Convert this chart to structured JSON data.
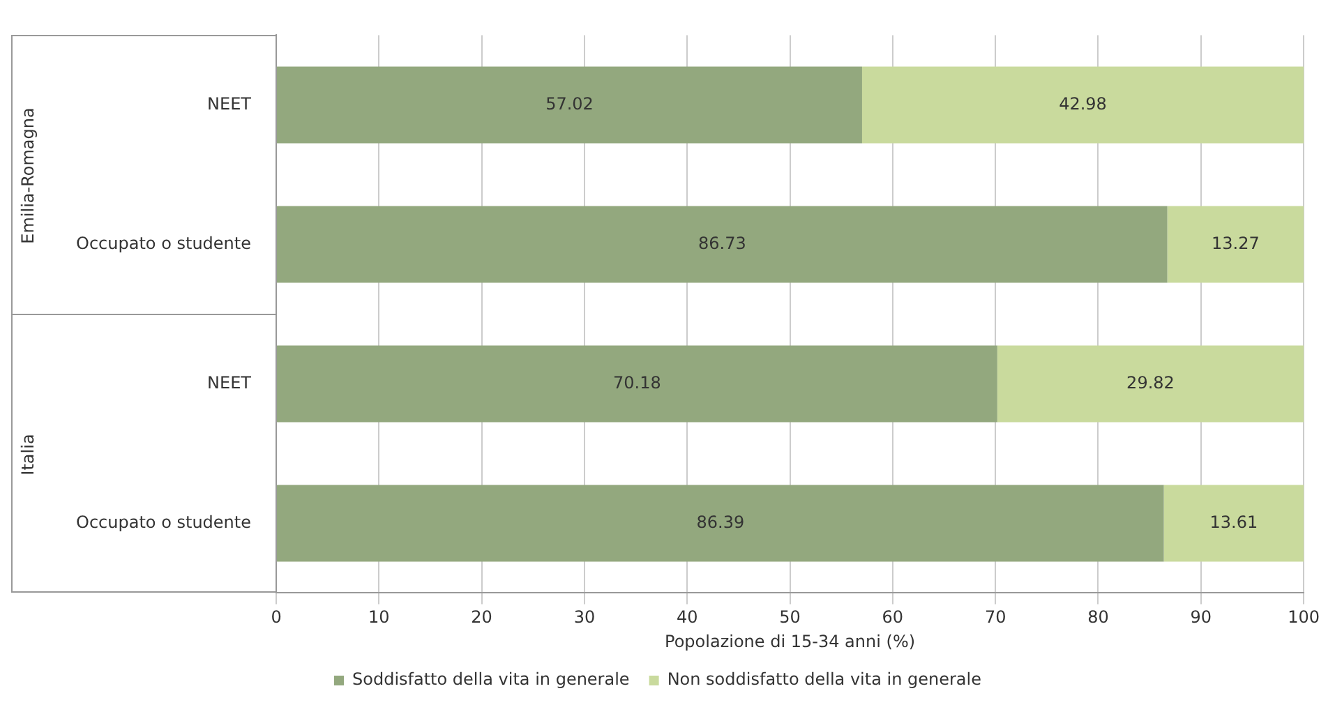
{
  "chart_data": {
    "type": "bar",
    "orientation": "horizontal",
    "stacked": true,
    "categories": [
      "NEET",
      "Occupato o studente",
      "NEET",
      "Occupato o studente"
    ],
    "series": [
      {
        "name": "Soddisfatto della vita in generale",
        "color": "#93a87e",
        "values": [
          57.02,
          86.73,
          70.18,
          86.39
        ]
      },
      {
        "name": "Non soddisfatto della vita in generale",
        "color": "#c9da9d",
        "values": [
          42.98,
          13.27,
          29.82,
          13.61
        ]
      }
    ],
    "xlabel": "Popolazione di 15-34 anni (%)",
    "xlim": [
      0,
      100
    ],
    "xticks": [
      0,
      10,
      20,
      30,
      40,
      50,
      60,
      70,
      80,
      90,
      100
    ],
    "grid": "x",
    "legend": "bottom",
    "data_labels": true,
    "annotations": [
      "Emilia-Romagna",
      "Italia"
    ]
  }
}
